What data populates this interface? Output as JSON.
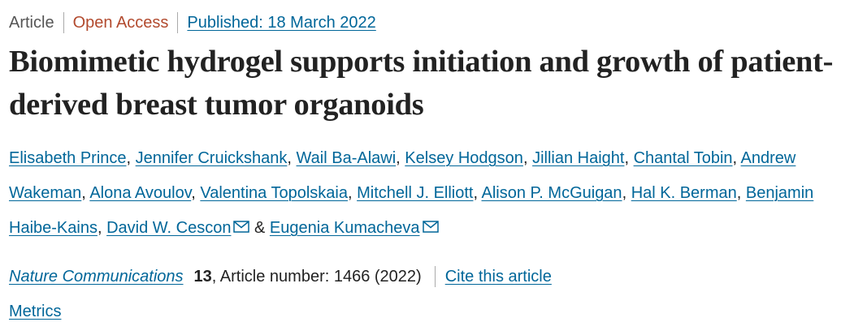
{
  "header": {
    "article_type": "Article",
    "access": "Open Access",
    "published": "Published: 18 March 2022"
  },
  "title": "Biomimetic hydrogel supports initiation and growth of patient-derived breast tumor organoids",
  "authors": [
    {
      "name": "Elisabeth Prince",
      "sep": ", "
    },
    {
      "name": "Jennifer Cruickshank",
      "sep": ", "
    },
    {
      "name": "Wail Ba-Alawi",
      "sep": ", "
    },
    {
      "name": "Kelsey Hodgson",
      "sep": ", "
    },
    {
      "name": "Jillian Haight",
      "sep": ", "
    },
    {
      "name": "Chantal Tobin",
      "sep": ", "
    },
    {
      "name": "Andrew Wakeman",
      "sep": ", "
    },
    {
      "name": "Alona Avoulov",
      "sep": ", "
    },
    {
      "name": "Valentina Topolskaia",
      "sep": ", "
    },
    {
      "name": "Mitchell J. Elliott",
      "sep": ", "
    },
    {
      "name": "Alison P. McGuigan",
      "sep": ", "
    },
    {
      "name": "Hal K. Berman",
      "sep": ", "
    },
    {
      "name": "Benjamin Haibe-Kains",
      "sep": ", "
    },
    {
      "name": "David W. Cescon",
      "corresponding": true,
      "sep": " & "
    },
    {
      "name": "Eugenia Kumacheva",
      "corresponding": true
    }
  ],
  "citation": {
    "journal": "Nature Communications",
    "volume": 13,
    "details": ", Article number: 1466 (2022)",
    "cite": "Cite this article"
  },
  "metrics": "Metrics"
}
